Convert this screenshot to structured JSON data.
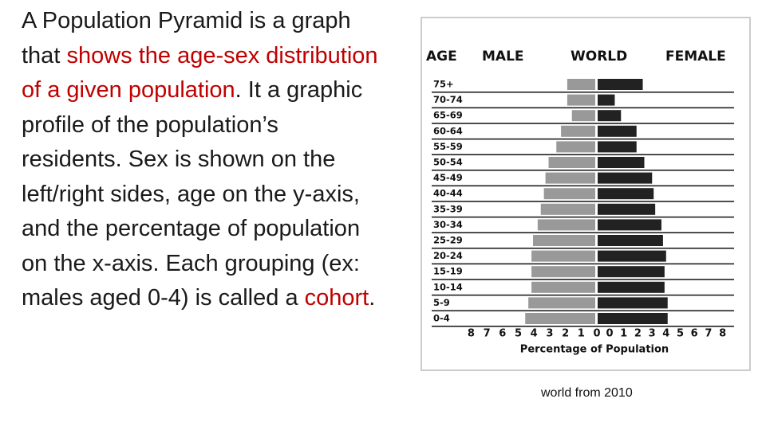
{
  "text": [
    {
      "text": "A Population Pyramid is a graph that ",
      "color": "#1a1a1a"
    },
    {
      "text": "shows the age-sex distribution of a given population",
      "color": "#c00000"
    },
    {
      "text": ". It a graphic profile of the population’s residents. Sex is shown on the left/right sides, age on the y-axis, and the percentage of population on the x-axis. Each grouping (ex: males aged 0-4) is called a ",
      "color": "#1a1a1a"
    },
    {
      "text": "cohort",
      "color": "#c00000"
    },
    {
      "text": ".",
      "color": "#1a1a1a"
    }
  ],
  "caption": "world from 2010",
  "chart_data": {
    "type": "pyramid",
    "title": "WORLD",
    "y_label": "AGE",
    "x_label": "Percentage of Population",
    "categories": [
      "75+",
      "70-74",
      "65-69",
      "60-64",
      "55-59",
      "50-54",
      "45-49",
      "40-44",
      "35-39",
      "30-34",
      "25-29",
      "20-24",
      "15-19",
      "10-14",
      "5-9",
      "0-4"
    ],
    "series": [
      {
        "name": "MALE",
        "color": "#999999",
        "values": [
          1.8,
          1.8,
          1.5,
          2.2,
          2.5,
          3.0,
          3.2,
          3.3,
          3.5,
          3.7,
          4.0,
          4.1,
          4.1,
          4.1,
          4.3,
          4.5
        ]
      },
      {
        "name": "FEMALE",
        "color": "#222222",
        "values": [
          2.9,
          1.1,
          1.5,
          2.5,
          2.5,
          3.0,
          3.5,
          3.6,
          3.7,
          4.1,
          4.2,
          4.4,
          4.3,
          4.3,
          4.5,
          4.5
        ]
      }
    ],
    "xlim": [
      0,
      8
    ],
    "xticks": [
      0,
      1,
      2,
      3,
      4,
      5,
      6,
      7,
      8
    ]
  }
}
